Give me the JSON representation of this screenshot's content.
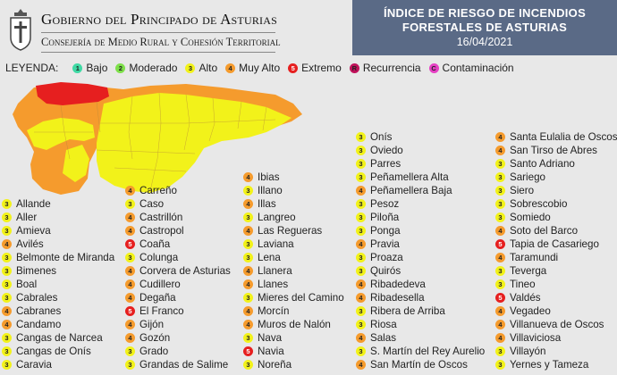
{
  "header": {
    "gov_title": "Gobierno del Principado de Asturias",
    "gov_subtitle": "Consejería de Medio Rural y Cohesión Territorial",
    "title_line1": "ÍNDICE DE RIESGO DE INCENDIOS",
    "title_line2": "FORESTALES DE ASTURIAS",
    "date": "16/04/2021"
  },
  "legend": {
    "label": "LEYENDA:",
    "items": [
      {
        "num": "1",
        "text": "Bajo",
        "color": "#3fd9a4"
      },
      {
        "num": "2",
        "text": "Moderado",
        "color": "#7ee04a"
      },
      {
        "num": "3",
        "text": "Alto",
        "color": "#f2f21a"
      },
      {
        "num": "4",
        "text": "Muy Alto",
        "color": "#f59b2d"
      },
      {
        "num": "5",
        "text": "Extremo",
        "color": "#e61f1f"
      },
      {
        "num": "R",
        "text": "Recurrencia",
        "color": "#c0115a"
      },
      {
        "num": "C",
        "text": "Contaminación",
        "color": "#e640c4"
      }
    ]
  },
  "map": {
    "colors": {
      "extreme": "#e61f1f",
      "very_high": "#f59b2d",
      "high": "#f2f21a"
    }
  },
  "columns": [
    [
      {
        "n": "3",
        "name": "Allande"
      },
      {
        "n": "3",
        "name": "Aller"
      },
      {
        "n": "3",
        "name": "Amieva"
      },
      {
        "n": "4",
        "name": "Avilés"
      },
      {
        "n": "3",
        "name": "Belmonte de Miranda"
      },
      {
        "n": "3",
        "name": "Bimenes"
      },
      {
        "n": "3",
        "name": "Boal"
      },
      {
        "n": "3",
        "name": "Cabrales"
      },
      {
        "n": "4",
        "name": "Cabranes"
      },
      {
        "n": "4",
        "name": "Candamo"
      },
      {
        "n": "3",
        "name": "Cangas de Narcea"
      },
      {
        "n": "3",
        "name": "Cangas de Onís"
      },
      {
        "n": "3",
        "name": "Caravia"
      }
    ],
    [
      {
        "n": "4",
        "name": "Carreño"
      },
      {
        "n": "3",
        "name": "Caso"
      },
      {
        "n": "4",
        "name": "Castrillón"
      },
      {
        "n": "4",
        "name": "Castropol"
      },
      {
        "n": "5",
        "name": "Coaña"
      },
      {
        "n": "3",
        "name": "Colunga"
      },
      {
        "n": "4",
        "name": "Corvera de Asturias"
      },
      {
        "n": "4",
        "name": "Cudillero"
      },
      {
        "n": "4",
        "name": "Degaña"
      },
      {
        "n": "5",
        "name": "El Franco"
      },
      {
        "n": "4",
        "name": "Gijón"
      },
      {
        "n": "4",
        "name": "Gozón"
      },
      {
        "n": "3",
        "name": "Grado"
      },
      {
        "n": "3",
        "name": "Grandas de Salime"
      }
    ],
    [
      {
        "n": "4",
        "name": "Ibias"
      },
      {
        "n": "3",
        "name": "Illano"
      },
      {
        "n": "4",
        "name": "Illas"
      },
      {
        "n": "3",
        "name": "Langreo"
      },
      {
        "n": "4",
        "name": "Las Regueras"
      },
      {
        "n": "3",
        "name": "Laviana"
      },
      {
        "n": "3",
        "name": "Lena"
      },
      {
        "n": "4",
        "name": "Llanera"
      },
      {
        "n": "4",
        "name": "Llanes"
      },
      {
        "n": "3",
        "name": "Mieres del Camino"
      },
      {
        "n": "4",
        "name": "Morcín"
      },
      {
        "n": "4",
        "name": "Muros de Nalón"
      },
      {
        "n": "3",
        "name": "Nava"
      },
      {
        "n": "5",
        "name": "Navia"
      },
      {
        "n": "3",
        "name": "Noreña"
      }
    ],
    [
      {
        "n": "3",
        "name": "Onís"
      },
      {
        "n": "3",
        "name": "Oviedo"
      },
      {
        "n": "3",
        "name": "Parres"
      },
      {
        "n": "3",
        "name": "Peñamellera Alta"
      },
      {
        "n": "4",
        "name": "Peñamellera Baja"
      },
      {
        "n": "3",
        "name": "Pesoz"
      },
      {
        "n": "3",
        "name": "Piloña"
      },
      {
        "n": "3",
        "name": "Ponga"
      },
      {
        "n": "4",
        "name": "Pravia"
      },
      {
        "n": "3",
        "name": "Proaza"
      },
      {
        "n": "3",
        "name": "Quirós"
      },
      {
        "n": "4",
        "name": "Ribadedeva"
      },
      {
        "n": "4",
        "name": "Ribadesella"
      },
      {
        "n": "3",
        "name": "Ribera de Arriba"
      },
      {
        "n": "3",
        "name": "Riosa"
      },
      {
        "n": "4",
        "name": "Salas"
      },
      {
        "n": "3",
        "name": "S. Martín del Rey Aurelio"
      },
      {
        "n": "4",
        "name": "San Martín de Oscos"
      }
    ],
    [
      {
        "n": "4",
        "name": "Santa Eulalia de Oscos"
      },
      {
        "n": "4",
        "name": "San Tirso de Abres"
      },
      {
        "n": "3",
        "name": "Santo Adriano"
      },
      {
        "n": "3",
        "name": "Sariego"
      },
      {
        "n": "3",
        "name": "Siero"
      },
      {
        "n": "3",
        "name": "Sobrescobio"
      },
      {
        "n": "3",
        "name": "Somiedo"
      },
      {
        "n": "4",
        "name": "Soto del Barco"
      },
      {
        "n": "5",
        "name": "Tapia de Casariego"
      },
      {
        "n": "4",
        "name": "Taramundi"
      },
      {
        "n": "3",
        "name": "Teverga"
      },
      {
        "n": "3",
        "name": "Tineo"
      },
      {
        "n": "5",
        "name": "Valdés"
      },
      {
        "n": "4",
        "name": "Vegadeo"
      },
      {
        "n": "4",
        "name": "Villanueva de Oscos"
      },
      {
        "n": "4",
        "name": "Villaviciosa"
      },
      {
        "n": "3",
        "name": "Villayón"
      },
      {
        "n": "3",
        "name": "Yernes y Tameza"
      }
    ]
  ]
}
